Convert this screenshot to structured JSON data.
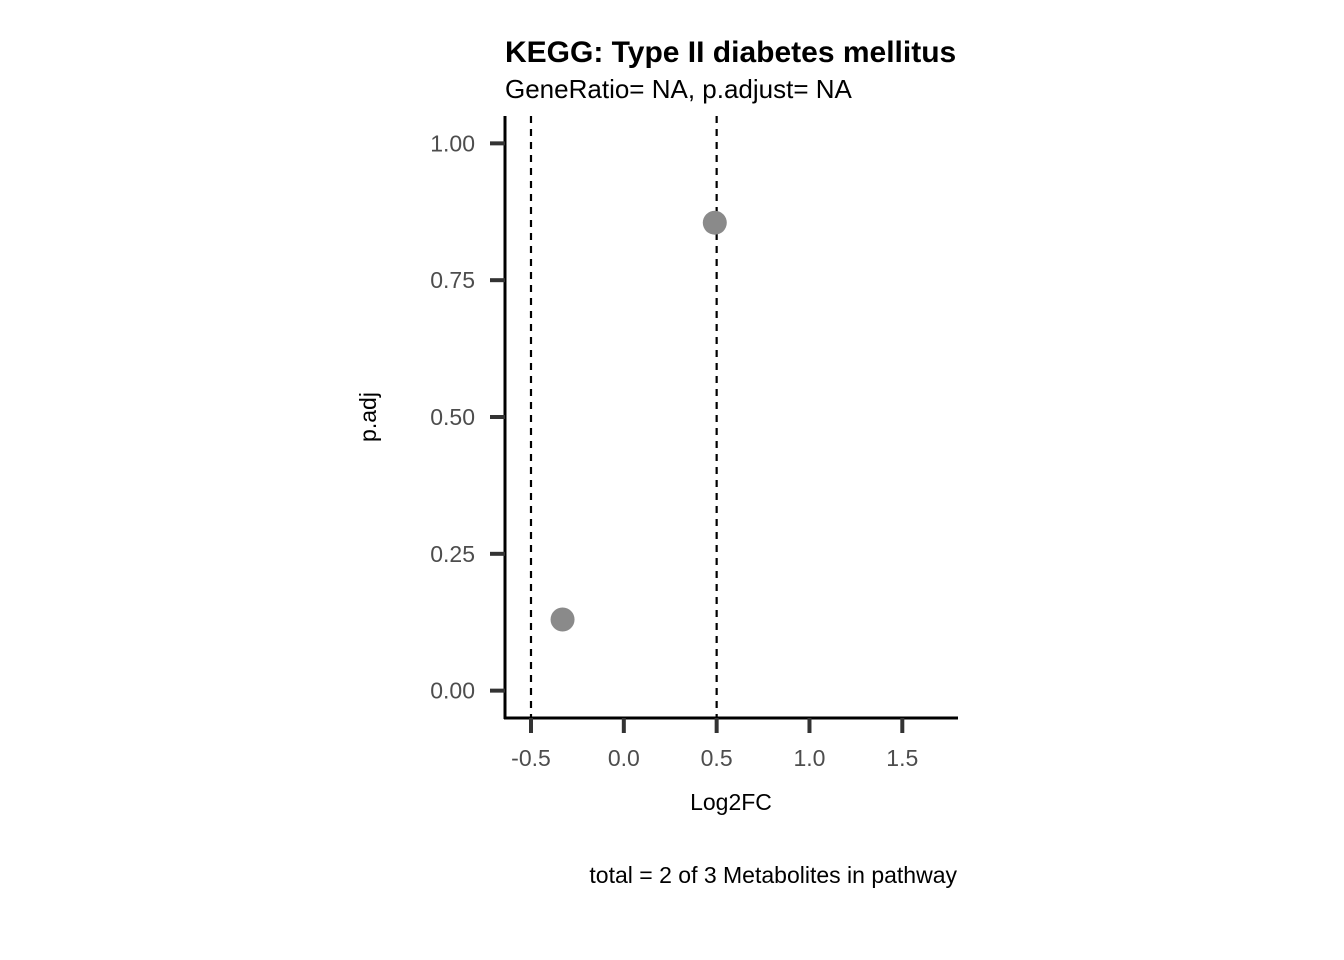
{
  "chart_data": {
    "type": "scatter",
    "title": "KEGG: Type II diabetes mellitus",
    "subtitle": "GeneRatio= NA, p.adjust= NA",
    "xlabel": "Log2FC",
    "ylabel": "p.adj",
    "caption": "total = 2 of 3 Metabolites in pathway",
    "xlim": [
      -0.64,
      1.8
    ],
    "ylim": [
      -0.05,
      1.05
    ],
    "x_ticks": [
      {
        "value": -0.5,
        "label": "-0.5"
      },
      {
        "value": 0.0,
        "label": "0.0"
      },
      {
        "value": 0.5,
        "label": "0.5"
      },
      {
        "value": 1.0,
        "label": "1.0"
      },
      {
        "value": 1.5,
        "label": "1.5"
      }
    ],
    "y_ticks": [
      {
        "value": 0.0,
        "label": "0.00"
      },
      {
        "value": 0.25,
        "label": "0.25"
      },
      {
        "value": 0.5,
        "label": "0.50"
      },
      {
        "value": 0.75,
        "label": "0.75"
      },
      {
        "value": 1.0,
        "label": "1.00"
      }
    ],
    "points": [
      {
        "x": -0.33,
        "y": 0.13
      },
      {
        "x": 0.49,
        "y": 0.855
      }
    ],
    "vlines": [
      -0.5,
      0.5
    ],
    "grid": false,
    "colors": {
      "point": "#8a8a8a",
      "axis": "#000000",
      "tick": "#333333",
      "vline": "#000000"
    }
  }
}
